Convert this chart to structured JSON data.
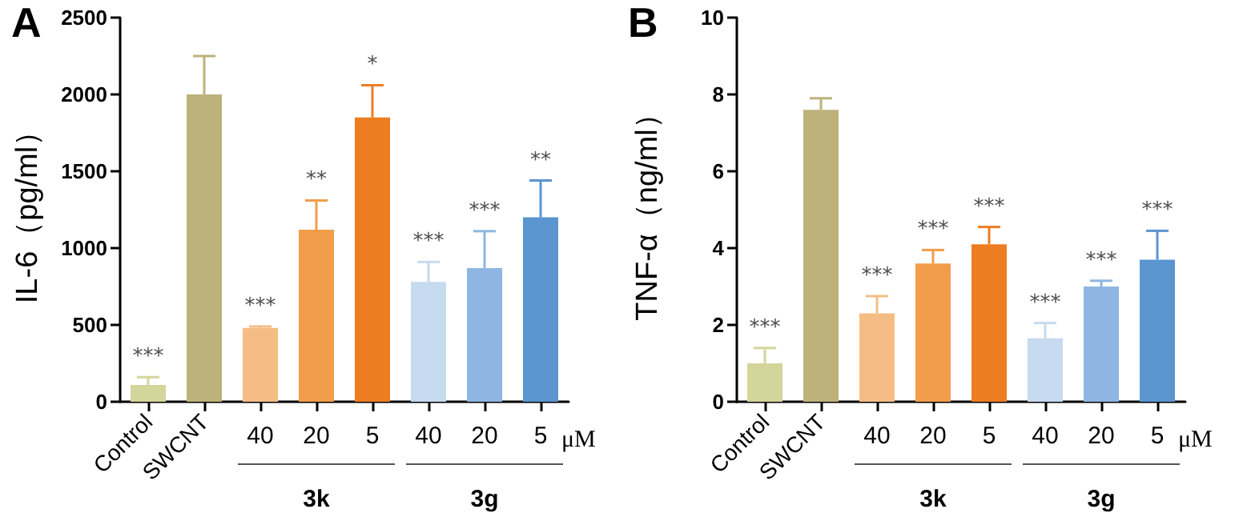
{
  "chart_data": [
    {
      "type": "bar",
      "title": "A",
      "ylabel": "IL-6（pg/ml）",
      "categories": [
        "Control",
        "SWCNT",
        "40",
        "20",
        "5",
        "40",
        "20",
        "5"
      ],
      "values": [
        110,
        2000,
        480,
        1120,
        1850,
        780,
        870,
        1200
      ],
      "colors": [
        "#d4d59a",
        "#bdb27a",
        "#f5bd85",
        "#f29d4a",
        "#ee7d22",
        "#c6daf0",
        "#8fb6e2",
        "#5b95d0"
      ],
      "errors": [
        [
          110,
          160
        ],
        [
          2000,
          2250
        ],
        [
          480,
          490
        ],
        [
          1120,
          1310
        ],
        [
          1850,
          2060
        ],
        [
          780,
          910
        ],
        [
          870,
          1110
        ],
        [
          1200,
          1440
        ]
      ],
      "value_labels": [
        "***",
        null,
        "***",
        "**",
        "*",
        "***",
        "***",
        "**"
      ],
      "annotations": [
        "μM",
        "3k",
        "3g"
      ],
      "ylim": [
        0,
        2500
      ],
      "yticks": [
        0,
        500,
        1000,
        1500,
        2000,
        2500
      ],
      "grid": false
    },
    {
      "type": "bar",
      "title": "B",
      "ylabel": "TNF-α（ng/ml）",
      "categories": [
        "Control",
        "SWCNT",
        "40",
        "20",
        "5",
        "40",
        "20",
        "5"
      ],
      "values": [
        1.0,
        7.6,
        2.3,
        3.6,
        4.1,
        1.65,
        3.0,
        3.7
      ],
      "colors": [
        "#d4d59a",
        "#bdb27a",
        "#f5bd85",
        "#f29d4a",
        "#ee7d22",
        "#c6daf0",
        "#8fb6e2",
        "#5b95d0"
      ],
      "errors": [
        [
          1.0,
          1.4
        ],
        [
          7.6,
          7.9
        ],
        [
          2.3,
          2.75
        ],
        [
          3.6,
          3.95
        ],
        [
          4.1,
          4.55
        ],
        [
          1.65,
          2.05
        ],
        [
          3.0,
          3.15
        ],
        [
          3.7,
          4.45
        ]
      ],
      "value_labels": [
        "***",
        null,
        "***",
        "***",
        "***",
        "***",
        "***",
        "***"
      ],
      "annotations": [
        "μM",
        "3k",
        "3g"
      ],
      "ylim": [
        0,
        10
      ],
      "yticks": [
        0,
        2,
        4,
        6,
        8,
        10
      ],
      "grid": false
    }
  ]
}
